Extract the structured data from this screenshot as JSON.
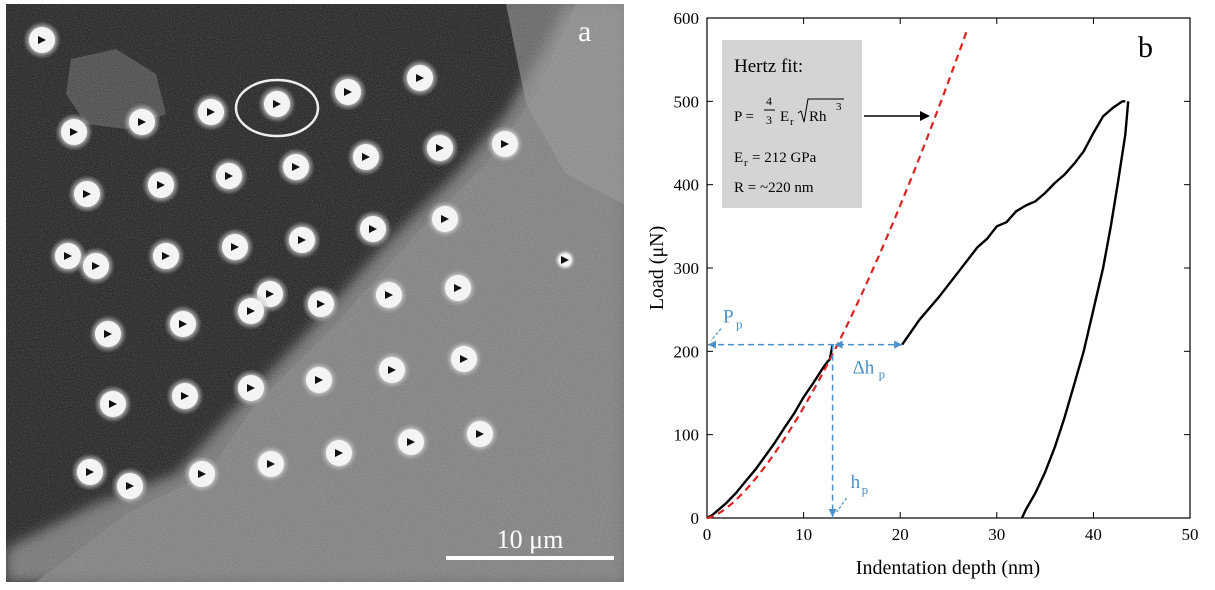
{
  "panel_a": {
    "label": "a",
    "scale_bar_label": "10 μm"
  },
  "chart_data": {
    "type": "line",
    "panel_label": "b",
    "xlabel": "Indentation depth (nm)",
    "ylabel": "Load (μN)",
    "xlim": [
      0,
      50
    ],
    "ylim": [
      0,
      600
    ],
    "xticks": [
      0,
      10,
      20,
      30,
      40,
      50
    ],
    "yticks": [
      0,
      100,
      200,
      300,
      400,
      500,
      600
    ],
    "grid": false,
    "colors": {
      "data": "#000000",
      "fit": "#dd2222",
      "annotation": "#4a90c8",
      "box": "#d4d4d4"
    },
    "fit_box": {
      "title": "Hertz fit:",
      "equation_lhs": "P =",
      "frac_num": "4",
      "frac_den": "3",
      "equation_term": "E",
      "equation_sub": "r",
      "radicand": "Rh",
      "radicand_exp": "3",
      "modulus_label": "E",
      "modulus_sub": "r",
      "modulus_value": "= 212 GPa",
      "radius_text": "R = ~220 nm"
    },
    "annotations": {
      "pop_in_load": {
        "text": "P",
        "sub": "p",
        "value": 208
      },
      "pop_in_depth": {
        "text": "h",
        "sub": "p",
        "value": 13
      },
      "depth_jump": {
        "text": "Δh",
        "sub": "p",
        "end": 20.2
      }
    },
    "hertz_fit": {
      "E_r_GPa": 212,
      "R_nm": 220,
      "x_range": [
        0,
        27
      ]
    },
    "series": [
      {
        "segment": "loading-1",
        "x": [
          0,
          0.5,
          1,
          2,
          3,
          4,
          5,
          6,
          7,
          8,
          9,
          10,
          11,
          12,
          12.5,
          12.7,
          13.0
        ],
        "y": [
          0,
          3,
          8,
          18,
          30,
          44,
          58,
          74,
          90,
          108,
          125,
          145,
          162,
          180,
          188,
          190,
          208
        ]
      },
      {
        "segment": "loading-2",
        "x": [
          20.2,
          22,
          24,
          26,
          28,
          29,
          30,
          31,
          32,
          33,
          34,
          35,
          36,
          37,
          38,
          39,
          40,
          41,
          42,
          43,
          43.3
        ],
        "y": [
          208,
          238,
          265,
          295,
          325,
          335,
          350,
          355,
          368,
          375,
          380,
          390,
          402,
          412,
          425,
          440,
          462,
          482,
          492,
          500,
          500
        ]
      },
      {
        "segment": "unloading",
        "x": [
          43.6,
          43.3,
          42.5,
          41.8,
          41,
          40,
          39,
          38,
          37,
          36,
          35,
          34,
          33,
          32.6
        ],
        "y": [
          500,
          460,
          400,
          350,
          300,
          250,
          200,
          160,
          120,
          85,
          55,
          30,
          10,
          0
        ]
      }
    ]
  }
}
